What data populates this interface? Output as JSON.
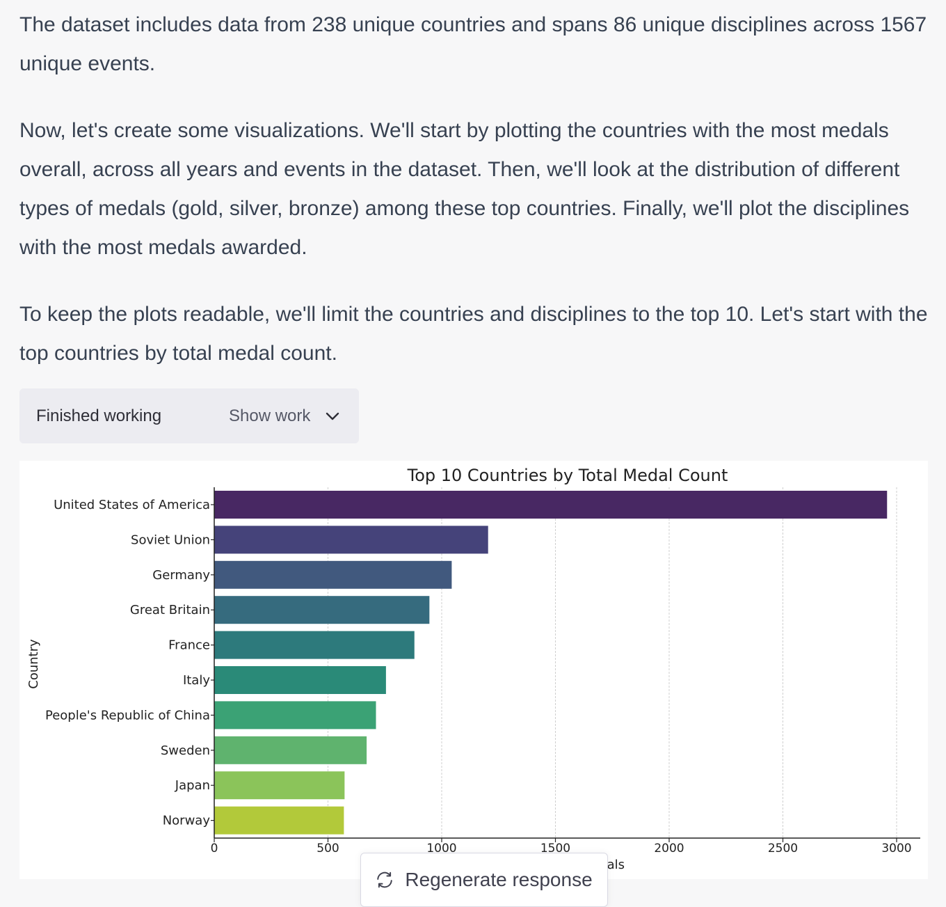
{
  "message": {
    "paragraphs": [
      "The dataset includes data from 238 unique countries and spans 86 unique disciplines across 1567 unique events.",
      "Now, let's create some visualizations. We'll start by plotting the countries with the most medals overall, across all years and events in the dataset. Then, we'll look at the distribution of different types of medals (gold, silver, bronze) among these top countries. Finally, we'll plot the disciplines with the most medals awarded.",
      "To keep the plots readable, we'll limit the countries and disciplines to the top 10. Let's start with the top countries by total medal count."
    ]
  },
  "work_panel": {
    "status": "Finished working",
    "toggle_label": "Show work",
    "toggle_icon": "chevron-down-icon"
  },
  "regenerate": {
    "label": "Regenerate response",
    "icon": "refresh-icon"
  },
  "chart_data": {
    "type": "bar",
    "orientation": "horizontal",
    "title": "Top 10 Countries by Total Medal Count",
    "ylabel": "Country",
    "xlabel_visible_fragment": "als",
    "categories": [
      "United States of America",
      "Soviet Union",
      "Germany",
      "Great Britain",
      "France",
      "Italy",
      "People's Republic of China",
      "Sweden",
      "Japan",
      "Norway"
    ],
    "values": [
      2958,
      1204,
      1044,
      946,
      880,
      755,
      711,
      670,
      573,
      570
    ],
    "colors": [
      "#482863",
      "#45437a",
      "#41597e",
      "#366b7e",
      "#2d7a7c",
      "#2a8a78",
      "#3ba275",
      "#5fb36e",
      "#8bc45a",
      "#b2c93a"
    ],
    "xlim": [
      0,
      3100
    ],
    "xticks": [
      0,
      500,
      1000,
      1500,
      2000,
      2500,
      3000
    ],
    "grid": "x"
  }
}
